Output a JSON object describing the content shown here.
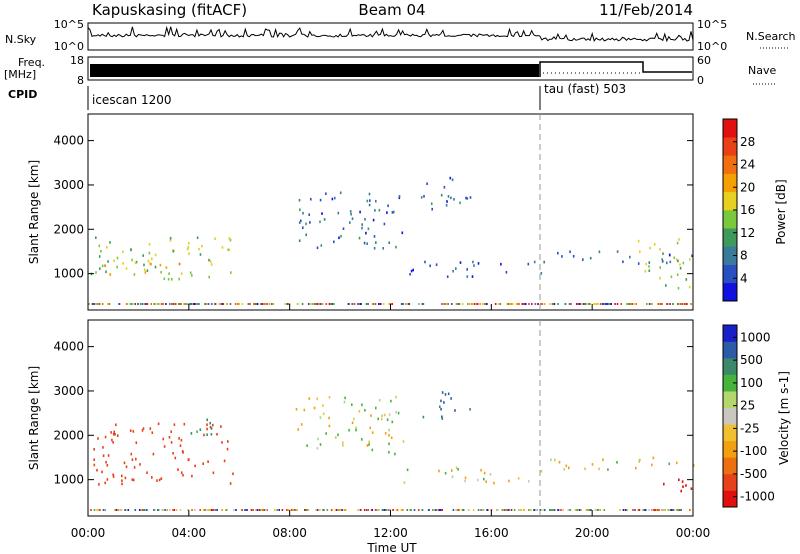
{
  "header": {
    "station": "Kapuskasing (fitACF)",
    "beam": "Beam 04",
    "date": "11/Feb/2014"
  },
  "strip": {
    "nsky_label": "N.Sky",
    "nsky_ticks": [
      "10^5",
      "10^0"
    ],
    "nsearch_label": "N.Search",
    "nsearch_ticks": [
      "10^5",
      "10^0"
    ],
    "freq_label": "Freq.",
    "freq_unit": "[MHz]",
    "freq_ticks": [
      "18",
      "8"
    ],
    "nave_label": "Nave",
    "nave_ticks": [
      "60",
      "0"
    ],
    "cpid_label": "CPID",
    "cpid_modes": [
      {
        "name": "icescan 1200",
        "start_hour": 0
      },
      {
        "name": "tau (fast) 503",
        "start_hour": 18
      }
    ]
  },
  "chart_data": [
    {
      "type": "heatmap",
      "panel": "power",
      "ylabel": "Slant Range [km]",
      "ylim": [
        180,
        4600
      ],
      "yticks": [
        "1000",
        "2000",
        "3000",
        "4000"
      ],
      "colorbar": {
        "label": "Power [dB]",
        "ticks": [
          "4",
          "8",
          "12",
          "16",
          "20",
          "24",
          "28"
        ],
        "colors": [
          "#1010e0",
          "#2a4fc2",
          "#3a7a9a",
          "#3e9a5a",
          "#7ac83c",
          "#e6d020",
          "#f4a000",
          "#f07010",
          "#ea4018",
          "#e01010"
        ]
      },
      "structures": [
        {
          "t0": 0.1,
          "t1": 5.8,
          "r0": 900,
          "r1": 1900,
          "value": 14
        },
        {
          "t0": 0.5,
          "t1": 4.0,
          "r0": 1000,
          "r1": 1300,
          "value": 18
        },
        {
          "t0": 8.2,
          "t1": 12.5,
          "r0": 1600,
          "r1": 2900,
          "value": 6
        },
        {
          "t0": 12.5,
          "t1": 18.0,
          "r0": 950,
          "r1": 1300,
          "value": 5
        },
        {
          "t0": 13.2,
          "t1": 15.2,
          "r0": 2400,
          "r1": 3200,
          "value": 6
        },
        {
          "t0": 18.0,
          "t1": 24.0,
          "r0": 1250,
          "r1": 1550,
          "value": 5
        },
        {
          "t0": 21.8,
          "t1": 24.0,
          "r0": 700,
          "r1": 1800,
          "value": 14
        }
      ]
    },
    {
      "type": "heatmap",
      "panel": "velocity",
      "ylabel": "Slant Range [km]",
      "ylim": [
        180,
        4600
      ],
      "yticks": [
        "1000",
        "2000",
        "3000",
        "4000"
      ],
      "colorbar": {
        "label": "Velocity [m s-1]",
        "ticks": [
          "1000",
          "500",
          "100",
          "25",
          "-25",
          "-100",
          "-500",
          "-1000"
        ],
        "colors": [
          "#1a20c8",
          "#2c5ca8",
          "#3a8a6a",
          "#46b43a",
          "#b4d66a",
          "#c8c8c0",
          "#f0c030",
          "#f0a010",
          "#ec7010",
          "#e84018",
          "#e01010"
        ]
      },
      "structures": [
        {
          "t0": 0.1,
          "t1": 5.8,
          "r0": 900,
          "r1": 2300,
          "value": -300
        },
        {
          "t0": 4.0,
          "t1": 5.5,
          "r0": 1900,
          "r1": 2400,
          "value": 60
        },
        {
          "t0": 8.2,
          "t1": 12.5,
          "r0": 1600,
          "r1": 2900,
          "value": 0
        },
        {
          "t0": 12.5,
          "t1": 18.0,
          "r0": 950,
          "r1": 1300,
          "value": 0
        },
        {
          "t0": 13.2,
          "t1": 15.2,
          "r0": 2400,
          "r1": 3000,
          "value": 150
        },
        {
          "t0": 18.0,
          "t1": 24.0,
          "r0": 1250,
          "r1": 1550,
          "value": 0
        },
        {
          "t0": 22.5,
          "t1": 24.0,
          "r0": 700,
          "r1": 1100,
          "value": -800
        }
      ]
    }
  ],
  "time_axis": {
    "label": "Time UT",
    "ticks": [
      "00:00",
      "04:00",
      "08:00",
      "12:00",
      "16:00",
      "20:00",
      "00:00"
    ],
    "range_hours": [
      0,
      24
    ]
  }
}
